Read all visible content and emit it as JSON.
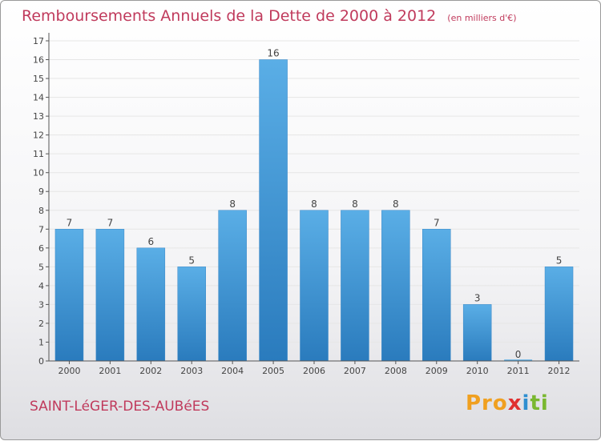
{
  "title": "Remboursements Annuels de la Dette de 2000 à 2012",
  "subtitle": "(en milliers d'€)",
  "town": "SAINT-LéGER-DES-AUBéES",
  "logo": {
    "p1": "Pro",
    "p2": "x",
    "p3": "i",
    "p4": "ti"
  },
  "colors": {
    "bar_top": "#5aaee6",
    "bar_bottom": "#2a7bbd",
    "title": "#c03a5c",
    "grid": "#e6e6e6"
  },
  "chart_data": {
    "type": "bar",
    "title": "Remboursements Annuels de la Dette de 2000 à 2012",
    "subtitle": "(en milliers d'€)",
    "categories": [
      "2000",
      "2001",
      "2002",
      "2003",
      "2004",
      "2005",
      "2006",
      "2007",
      "2008",
      "2009",
      "2010",
      "2011",
      "2012"
    ],
    "values": [
      7,
      7,
      6,
      5,
      8,
      16,
      8,
      8,
      8,
      7,
      3,
      0,
      5
    ],
    "data_labels": [
      "7",
      "7",
      "6",
      "5",
      "8",
      "16",
      "8",
      "8",
      "8",
      "7",
      "3",
      "0",
      "5"
    ],
    "yticks": [
      "0",
      "1",
      "2",
      "3",
      "4",
      "5",
      "6",
      "7",
      "8",
      "9",
      "10",
      "11",
      "12",
      "13",
      "14",
      "15",
      "16",
      "17"
    ],
    "ylim": [
      0,
      17
    ],
    "xlabel": "",
    "ylabel": "",
    "grid": true
  }
}
